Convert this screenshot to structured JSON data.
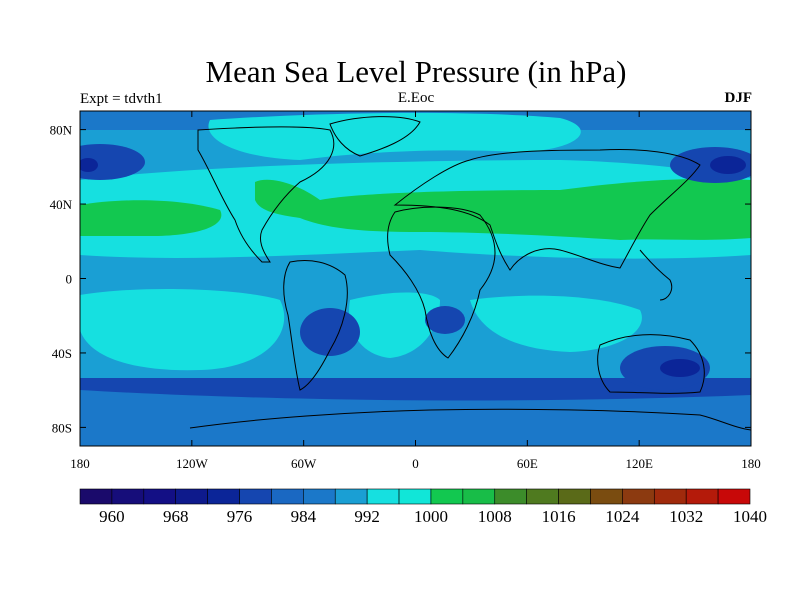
{
  "header": {
    "title": "Mean Sea Level Pressure (in hPa)",
    "left_label": "Expt = tdvth1",
    "center_label": "E.Eoc",
    "right_label": "DJF"
  },
  "map": {
    "lon_range": [
      -180,
      180
    ],
    "lat_range": [
      -90,
      90
    ],
    "projection": "cylindrical-equidistant",
    "lon_ticks": [
      {
        "value": -180,
        "label": "180"
      },
      {
        "value": -120,
        "label": "120W"
      },
      {
        "value": -60,
        "label": "60W"
      },
      {
        "value": 0,
        "label": "0"
      },
      {
        "value": 60,
        "label": "60E"
      },
      {
        "value": 120,
        "label": "120E"
      },
      {
        "value": 180,
        "label": "180"
      }
    ],
    "lat_ticks": [
      {
        "value": 80,
        "label": "80N"
      },
      {
        "value": 40,
        "label": "40N"
      },
      {
        "value": 0,
        "label": "0"
      },
      {
        "value": -40,
        "label": "40S"
      },
      {
        "value": -80,
        "label": "80S"
      }
    ]
  },
  "colorbar": {
    "colors": [
      "#1a0a6b",
      "#160d7a",
      "#130f85",
      "#0e1a8c",
      "#0b2598",
      "#1546b0",
      "#1a68c2",
      "#1b78c9",
      "#1a9fd4",
      "#16e0e0",
      "#11e6d8",
      "#12c850",
      "#18bd48",
      "#3c8c2a",
      "#4f7a1f",
      "#5a6a18",
      "#7a4c10",
      "#8c3a10",
      "#a02a0c",
      "#b41a0a",
      "#c80808"
    ],
    "labels": [
      "960",
      "968",
      "976",
      "984",
      "992",
      "1000",
      "1008",
      "1016",
      "1024",
      "1032",
      "1040"
    ]
  }
}
